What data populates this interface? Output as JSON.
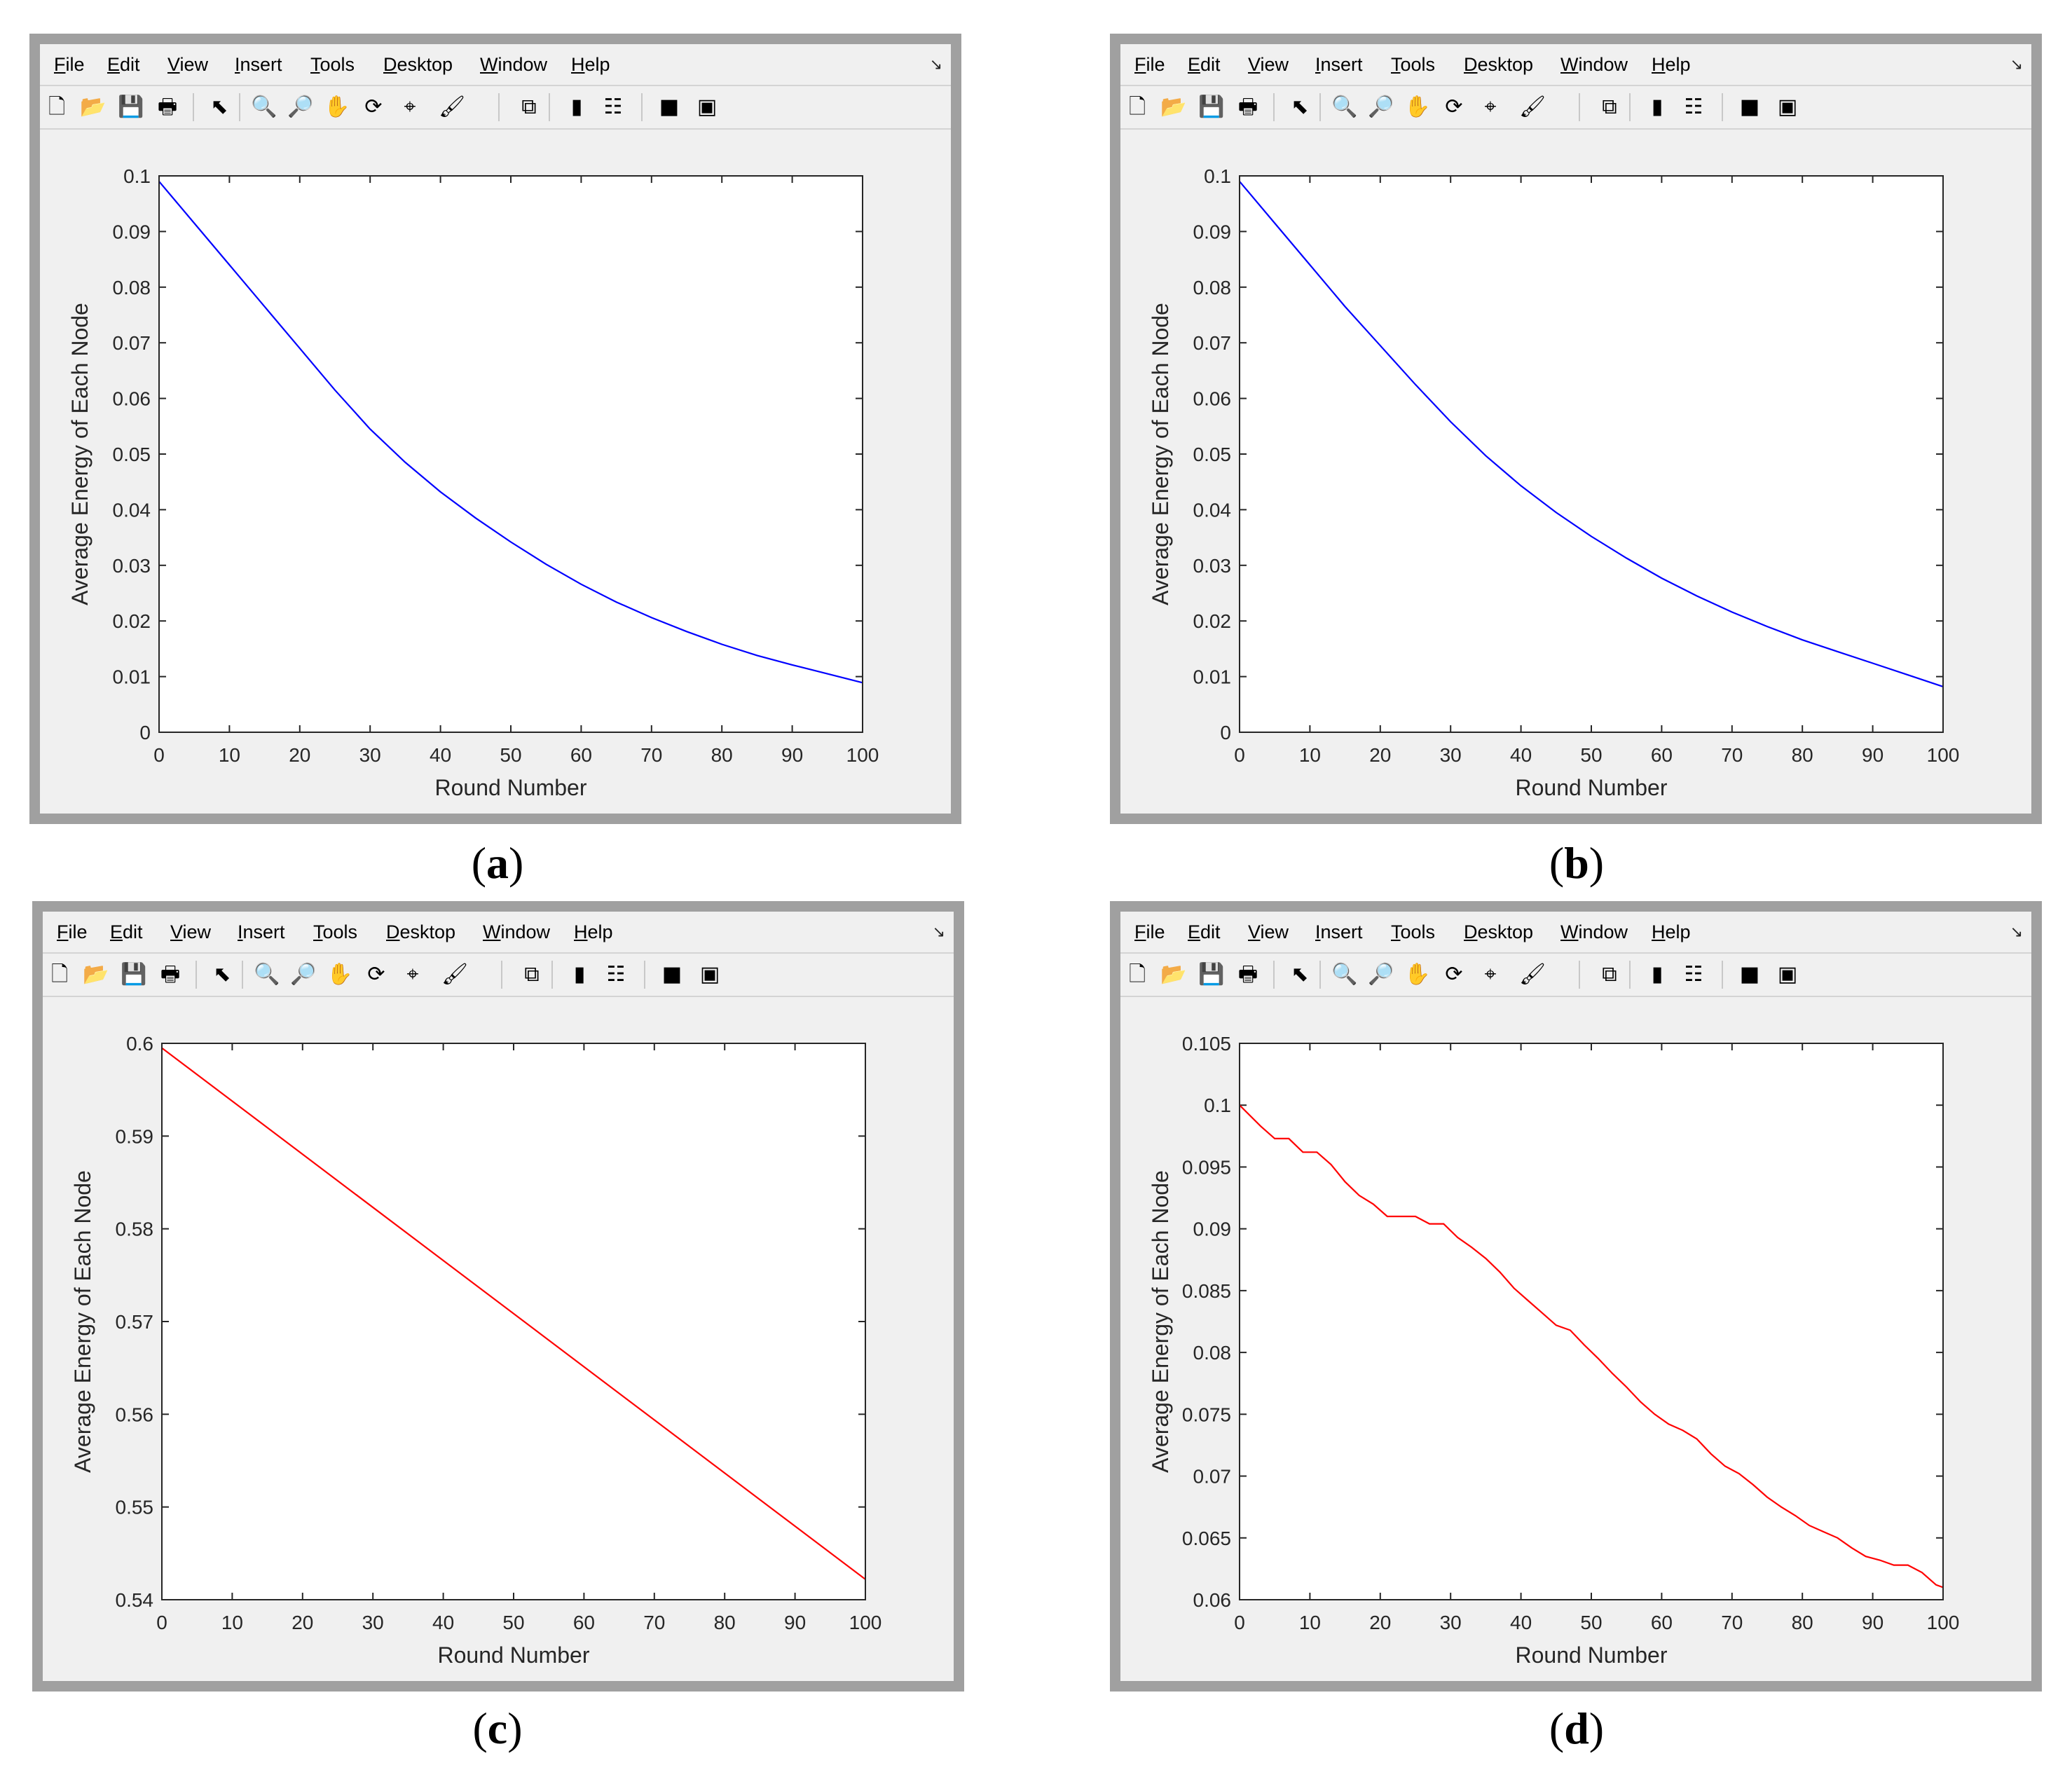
{
  "menu": [
    "File",
    "Edit",
    "View",
    "Insert",
    "Tools",
    "Desktop",
    "Window",
    "Help"
  ],
  "dock_icon": "dock-arrow-icon",
  "toolbar_icons": [
    "new-figure-icon",
    "open-icon",
    "save-icon",
    "print-icon",
    "pointer-icon",
    "zoom-in-icon",
    "zoom-out-icon",
    "pan-icon",
    "rotate-icon",
    "data-cursor-icon",
    "brush-icon",
    "link-plot-icon",
    "colorbar-icon",
    "legend-icon",
    "hide-plot-tools-icon",
    "show-plot-tools-icon"
  ],
  "colors": {
    "blue_line": "#0000ff",
    "red_line": "#ff0000",
    "window_frame": "#a0a0a0",
    "window_bg": "#f0f0f0"
  },
  "panels": [
    {
      "caption_letter": "a"
    },
    {
      "caption_letter": "b"
    },
    {
      "caption_letter": "c"
    },
    {
      "caption_letter": "d"
    }
  ],
  "chart_data": [
    {
      "type": "line",
      "xlabel": "Round Number",
      "ylabel": "Average Energy of Each Node",
      "xlim": [
        0,
        100
      ],
      "ylim": [
        0,
        0.1
      ],
      "xticks": [
        "0",
        "10",
        "20",
        "30",
        "40",
        "50",
        "60",
        "70",
        "80",
        "90",
        "100"
      ],
      "yticks": [
        "0",
        "0.01",
        "0.02",
        "0.03",
        "0.04",
        "0.05",
        "0.06",
        "0.07",
        "0.08",
        "0.09",
        "0.1"
      ],
      "grid": false,
      "series": [
        {
          "color": "#0000ff",
          "x": [
            0,
            5,
            10,
            15,
            20,
            25,
            30,
            35,
            40,
            45,
            50,
            55,
            60,
            65,
            70,
            75,
            80,
            85,
            90,
            95,
            100
          ],
          "y": [
            0.099,
            0.0915,
            0.084,
            0.0765,
            0.069,
            0.0615,
            0.0545,
            0.0485,
            0.0432,
            0.0385,
            0.0342,
            0.0302,
            0.0266,
            0.0234,
            0.0206,
            0.0181,
            0.0158,
            0.0138,
            0.0121,
            0.0105,
            0.0089
          ]
        }
      ]
    },
    {
      "type": "line",
      "xlabel": "Round Number",
      "ylabel": "Average Energy of Each Node",
      "xlim": [
        0,
        100
      ],
      "ylim": [
        0,
        0.1
      ],
      "xticks": [
        "0",
        "10",
        "20",
        "30",
        "40",
        "50",
        "60",
        "70",
        "80",
        "90",
        "100"
      ],
      "yticks": [
        "0",
        "0.01",
        "0.02",
        "0.03",
        "0.04",
        "0.05",
        "0.06",
        "0.07",
        "0.08",
        "0.09",
        "0.1"
      ],
      "grid": false,
      "series": [
        {
          "color": "#0000ff",
          "x": [
            0,
            5,
            10,
            15,
            20,
            25,
            30,
            35,
            40,
            45,
            50,
            55,
            60,
            65,
            70,
            75,
            80,
            85,
            90,
            95,
            100
          ],
          "y": [
            0.099,
            0.0915,
            0.084,
            0.0765,
            0.0695,
            0.0625,
            0.0558,
            0.0497,
            0.0443,
            0.0395,
            0.0352,
            0.0313,
            0.0277,
            0.0245,
            0.0216,
            0.019,
            0.0166,
            0.0145,
            0.0124,
            0.0103,
            0.0082
          ]
        }
      ]
    },
    {
      "type": "line",
      "xlabel": "Round Number",
      "ylabel": "Average Energy of Each Node",
      "xlim": [
        0,
        100
      ],
      "ylim": [
        0.54,
        0.6
      ],
      "xticks": [
        "0",
        "10",
        "20",
        "30",
        "40",
        "50",
        "60",
        "70",
        "80",
        "90",
        "100"
      ],
      "yticks": [
        "0.54",
        "0.55",
        "0.56",
        "0.57",
        "0.58",
        "0.59",
        "0.6"
      ],
      "grid": false,
      "series": [
        {
          "color": "#ff0000",
          "x": [
            0,
            100
          ],
          "y": [
            0.5995,
            0.5422
          ]
        }
      ]
    },
    {
      "type": "line",
      "xlabel": "Round Number",
      "ylabel": "Average Energy of Each Node",
      "xlim": [
        0,
        100
      ],
      "ylim": [
        0.06,
        0.105
      ],
      "xticks": [
        "0",
        "10",
        "20",
        "30",
        "40",
        "50",
        "60",
        "70",
        "80",
        "90",
        "100"
      ],
      "yticks": [
        "0.06",
        "0.065",
        "0.07",
        "0.075",
        "0.08",
        "0.085",
        "0.09",
        "0.095",
        "0.1",
        "0.105"
      ],
      "grid": false,
      "series": [
        {
          "color": "#ff0000",
          "x": [
            0,
            3,
            5,
            7,
            9,
            11,
            13,
            15,
            17,
            19,
            21,
            23,
            25,
            27,
            29,
            31,
            33,
            35,
            37,
            39,
            41,
            43,
            45,
            47,
            49,
            51,
            53,
            55,
            57,
            59,
            61,
            63,
            65,
            67,
            69,
            71,
            73,
            75,
            77,
            79,
            81,
            83,
            85,
            87,
            89,
            91,
            93,
            95,
            97,
            99,
            100
          ],
          "y": [
            0.1,
            0.0983,
            0.0973,
            0.0973,
            0.0962,
            0.0962,
            0.0952,
            0.0938,
            0.0927,
            0.092,
            0.091,
            0.091,
            0.091,
            0.0904,
            0.0904,
            0.0893,
            0.0885,
            0.0876,
            0.0865,
            0.0852,
            0.0842,
            0.0832,
            0.0822,
            0.0818,
            0.0806,
            0.0795,
            0.0783,
            0.0772,
            0.076,
            0.075,
            0.0742,
            0.0737,
            0.073,
            0.0718,
            0.0708,
            0.0702,
            0.0693,
            0.0683,
            0.0675,
            0.0668,
            0.066,
            0.0655,
            0.065,
            0.0642,
            0.0635,
            0.0632,
            0.0628,
            0.0628,
            0.0622,
            0.0612,
            0.061
          ]
        }
      ]
    }
  ]
}
